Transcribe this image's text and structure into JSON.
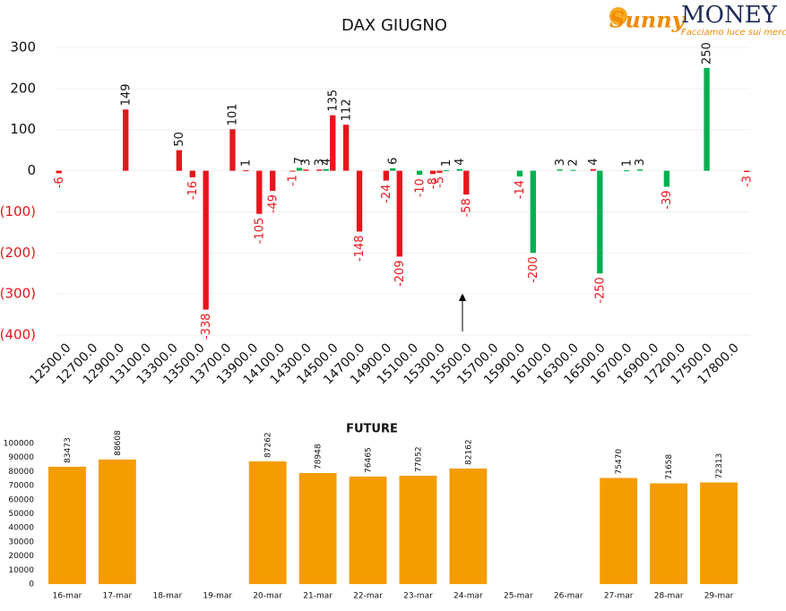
{
  "logo": {
    "brand": "Sunny",
    "name": "MONEY",
    "tagline": "Facciamo luce sui mercati"
  },
  "chart_data": [
    {
      "type": "bar",
      "title": "DAX GIUGNO",
      "categories": [
        "12500.0",
        null,
        null,
        null,
        "12700.0",
        null,
        null,
        null,
        "12900.0",
        null,
        null,
        null,
        "13100.0",
        null,
        null,
        null,
        "13300.0",
        null,
        null,
        null,
        "13500.0",
        null,
        null,
        null,
        "13700.0",
        null,
        null,
        null,
        "13900.0",
        null,
        null,
        null,
        "14100.0",
        null,
        null,
        null,
        "14300.0",
        null,
        null,
        null,
        "14500.0",
        null,
        null,
        null,
        "14700.0",
        null,
        null,
        null,
        "14900.0",
        null,
        null,
        null,
        "15100.0",
        null,
        null,
        null,
        "15300.0",
        null,
        null,
        null,
        "15500.0",
        null,
        null,
        null,
        "15700.0",
        null,
        null,
        null,
        "15900.0",
        null,
        null,
        null,
        "16100.0",
        null,
        null,
        null,
        "16300.0",
        null,
        null,
        null,
        "16500.0",
        null,
        null,
        null,
        "16700.0",
        null,
        null,
        null,
        "16900.0",
        null,
        null,
        null,
        "17200.0",
        null,
        null,
        null,
        "17500.0",
        null,
        null,
        null,
        "17800.0",
        null,
        null,
        null
      ],
      "series": [
        {
          "color": "#e8141c",
          "values": [
            -6,
            null,
            null,
            null,
            null,
            null,
            null,
            null,
            null,
            null,
            149,
            null,
            null,
            null,
            null,
            null,
            null,
            null,
            50,
            null,
            -16,
            null,
            -338,
            null,
            null,
            null,
            101,
            null,
            1,
            null,
            -105,
            null,
            -49,
            null,
            null,
            -1,
            null,
            3,
            null,
            3,
            null,
            135,
            null,
            112,
            null,
            -148,
            null,
            null,
            null,
            -24,
            null,
            -209,
            null,
            null,
            null,
            null,
            -8,
            -5,
            null,
            null,
            null,
            -58,
            null,
            null,
            null,
            null,
            null,
            null,
            null,
            null,
            null,
            null,
            null,
            null,
            null,
            null,
            null,
            null,
            null,
            null,
            4,
            null,
            null,
            null,
            null,
            null,
            null,
            null,
            null,
            null,
            null,
            null,
            null,
            null,
            null,
            null,
            null,
            null,
            null,
            null,
            null,
            null,
            null,
            -3
          ]
        },
        {
          "color": "#00b050",
          "values": [
            null,
            null,
            null,
            null,
            null,
            null,
            null,
            null,
            null,
            null,
            null,
            null,
            null,
            null,
            null,
            null,
            null,
            null,
            null,
            null,
            null,
            null,
            null,
            null,
            null,
            null,
            null,
            null,
            null,
            null,
            null,
            null,
            null,
            null,
            null,
            null,
            7,
            null,
            null,
            null,
            4,
            null,
            null,
            null,
            null,
            null,
            null,
            null,
            null,
            null,
            6,
            null,
            null,
            null,
            -10,
            null,
            null,
            null,
            1,
            null,
            4,
            null,
            null,
            null,
            null,
            null,
            null,
            null,
            null,
            -14,
            null,
            -200,
            null,
            null,
            null,
            3,
            null,
            2,
            null,
            null,
            null,
            -250,
            null,
            null,
            null,
            1,
            null,
            3,
            null,
            null,
            null,
            -39,
            null,
            null,
            null,
            null,
            null,
            250,
            null,
            null,
            null,
            null,
            null,
            null
          ]
        }
      ],
      "ylim": [
        -400,
        300
      ],
      "yticks": [
        300,
        200,
        100,
        0,
        {
          "value": -100,
          "label": "(100)"
        },
        {
          "value": -200,
          "label": "(200)"
        },
        {
          "value": -300,
          "label": "(300)"
        },
        {
          "value": -400,
          "label": "(400)"
        }
      ],
      "grid": true
    },
    {
      "type": "bar",
      "title": "FUTURE",
      "categories": [
        "16-mar",
        "17-mar",
        "18-mar",
        "19-mar",
        "20-mar",
        "21-mar",
        "22-mar",
        "23-mar",
        "24-mar",
        "25-mar",
        "26-mar",
        "27-mar",
        "28-mar",
        "29-mar"
      ],
      "values": [
        83473,
        88608,
        null,
        null,
        87262,
        78948,
        76465,
        77052,
        82162,
        null,
        null,
        75470,
        71658,
        72313
      ],
      "color": "#f59c00",
      "ylim": [
        0,
        100000
      ],
      "yticks": [
        0,
        10000,
        20000,
        30000,
        40000,
        50000,
        60000,
        70000,
        80000,
        90000,
        100000
      ],
      "grid": false
    }
  ]
}
